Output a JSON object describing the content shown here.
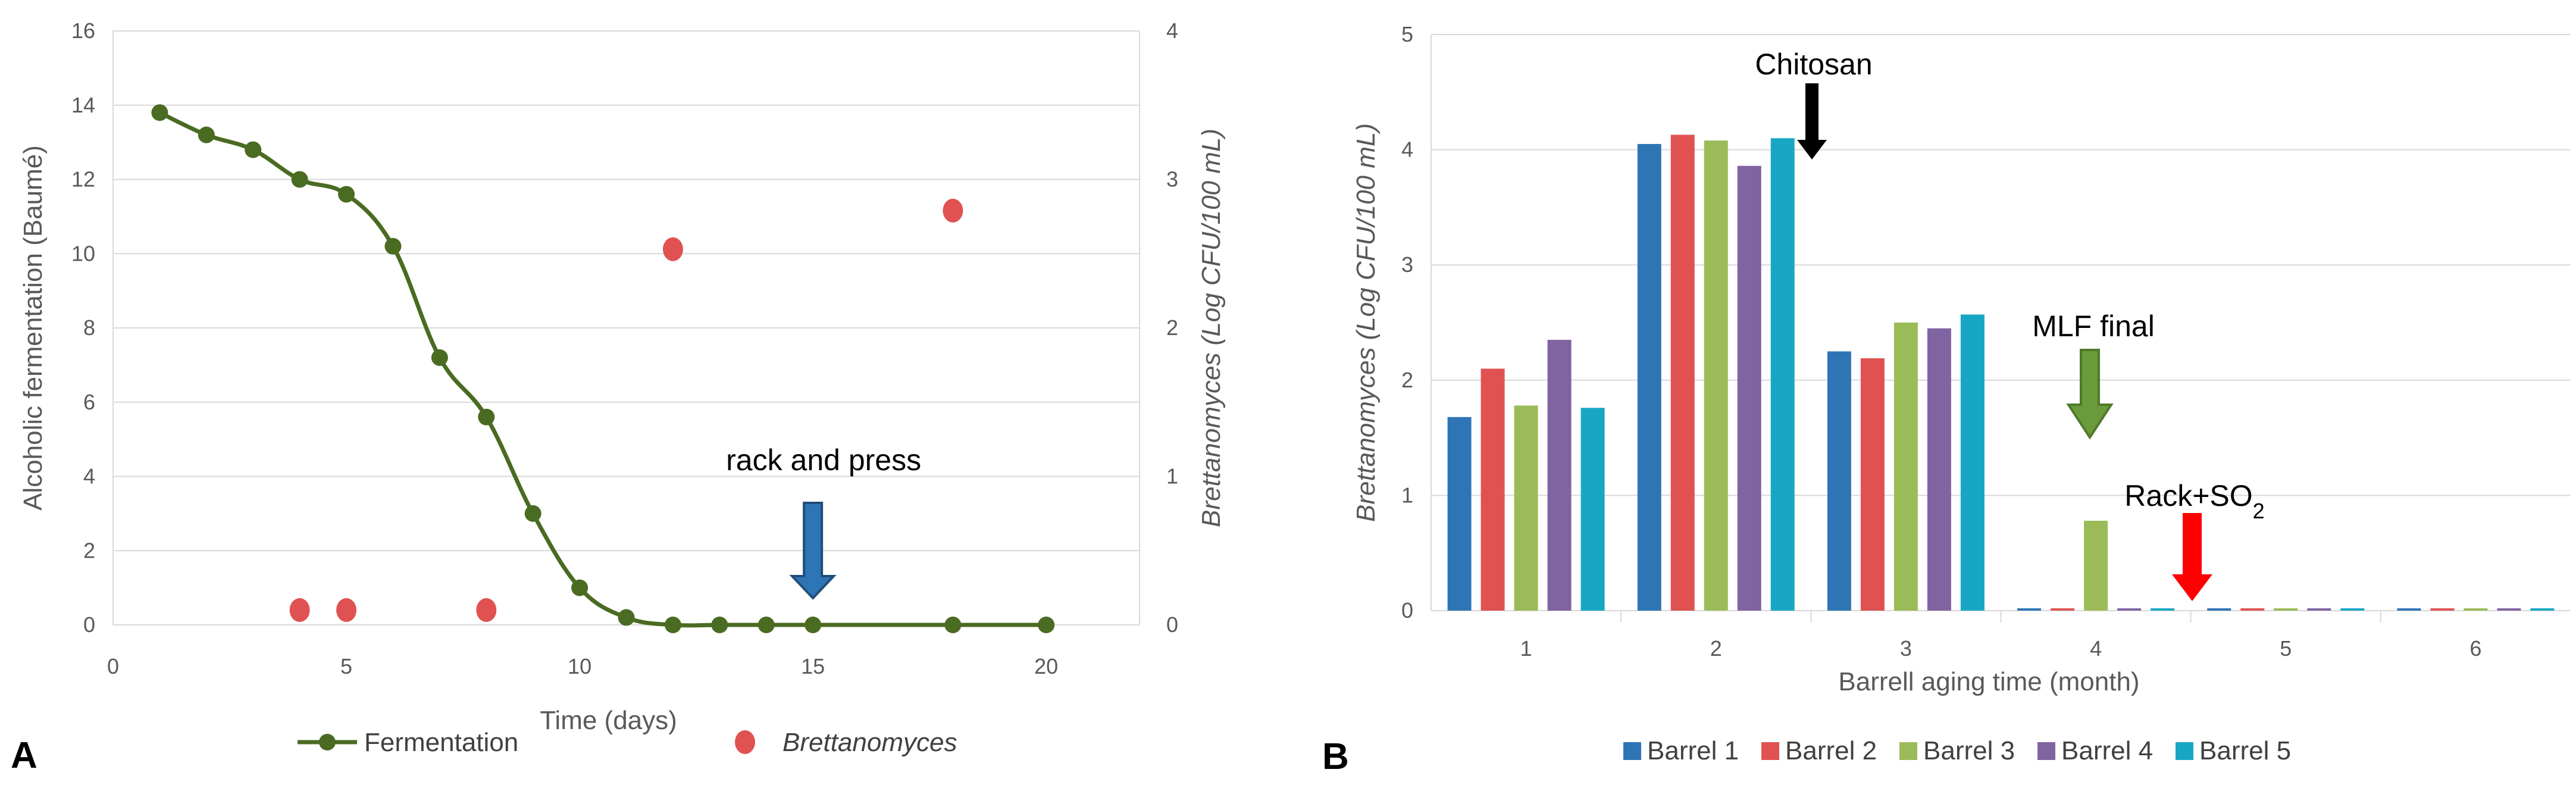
{
  "chart_data": [
    {
      "type": "line",
      "panel_label": "A",
      "xlabel": "Time (days)",
      "ylabel": "Alcoholic fermentation (Baumé)",
      "y2label": "Brettanomyces (Log CFU/100 mL)",
      "xlim": [
        0,
        22
      ],
      "ylim": [
        0,
        16
      ],
      "y2lim": [
        0,
        4
      ],
      "x_ticks": [
        "0",
        "5",
        "10",
        "15",
        "20"
      ],
      "y_ticks": [
        "0",
        "2",
        "4",
        "6",
        "8",
        "10",
        "12",
        "14",
        "16"
      ],
      "y2_ticks": [
        "0",
        "1",
        "2",
        "3",
        "4"
      ],
      "grid": "horizontal",
      "legend_position": "bottom",
      "series": [
        {
          "name": "Fermentation",
          "axis": "left",
          "color": "#4a6b22",
          "style": "smooth line with markers",
          "x": [
            1,
            2,
            3,
            4,
            5,
            6,
            7,
            8,
            9,
            10,
            11,
            12,
            13,
            14,
            15,
            18,
            20
          ],
          "y": [
            13.8,
            13.2,
            12.8,
            12.0,
            11.6,
            10.2,
            7.2,
            5.6,
            3.0,
            1.0,
            0.2,
            0.0,
            0.0,
            0.0,
            0.0,
            0.0,
            0.0
          ]
        },
        {
          "name": "Brettanomyces",
          "axis": "right",
          "color": "#e05252",
          "style": "markers only",
          "x": [
            4,
            5,
            8,
            12,
            18
          ],
          "y": [
            0.1,
            0.1,
            0.1,
            2.53,
            2.79
          ]
        }
      ],
      "annotations": [
        {
          "text": "rack and press",
          "x": 15,
          "arrow_color": "#2e75b6"
        }
      ]
    },
    {
      "type": "bar",
      "panel_label": "B",
      "xlabel": "Barrell aging time (month)",
      "ylabel": "Brettanomyces (Log CFU/100 mL)",
      "ylim": [
        0,
        5
      ],
      "y_ticks": [
        "0",
        "1",
        "2",
        "3",
        "4",
        "5"
      ],
      "categories": [
        "1",
        "2",
        "3",
        "4",
        "5",
        "6"
      ],
      "grid": "horizontal",
      "legend_position": "bottom",
      "series": [
        {
          "name": "Barrel 1",
          "color": "#2e75b6",
          "values": [
            1.68,
            4.05,
            2.25,
            0.02,
            0.02,
            0.02
          ]
        },
        {
          "name": "Barrel 2",
          "color": "#e05252",
          "values": [
            2.1,
            4.13,
            2.19,
            0.02,
            0.02,
            0.02
          ]
        },
        {
          "name": "Barrel 3",
          "color": "#9bbb59",
          "values": [
            1.78,
            4.08,
            2.5,
            0.78,
            0.02,
            0.02
          ]
        },
        {
          "name": "Barrel 4",
          "color": "#8064a2",
          "values": [
            2.35,
            3.86,
            2.45,
            0.02,
            0.02,
            0.02
          ]
        },
        {
          "name": "Barrel 5",
          "color": "#17a7c4",
          "values": [
            1.76,
            4.1,
            2.57,
            0.02,
            0.02,
            0.02
          ]
        }
      ],
      "annotations": [
        {
          "text": "Chitosan",
          "arrow_color": "#000000"
        },
        {
          "text": "MLF final",
          "arrow_color": "#6b9a3a"
        },
        {
          "text_main": "Rack+SO",
          "text_sub": "2",
          "arrow_color": "#ff0000"
        }
      ]
    }
  ]
}
